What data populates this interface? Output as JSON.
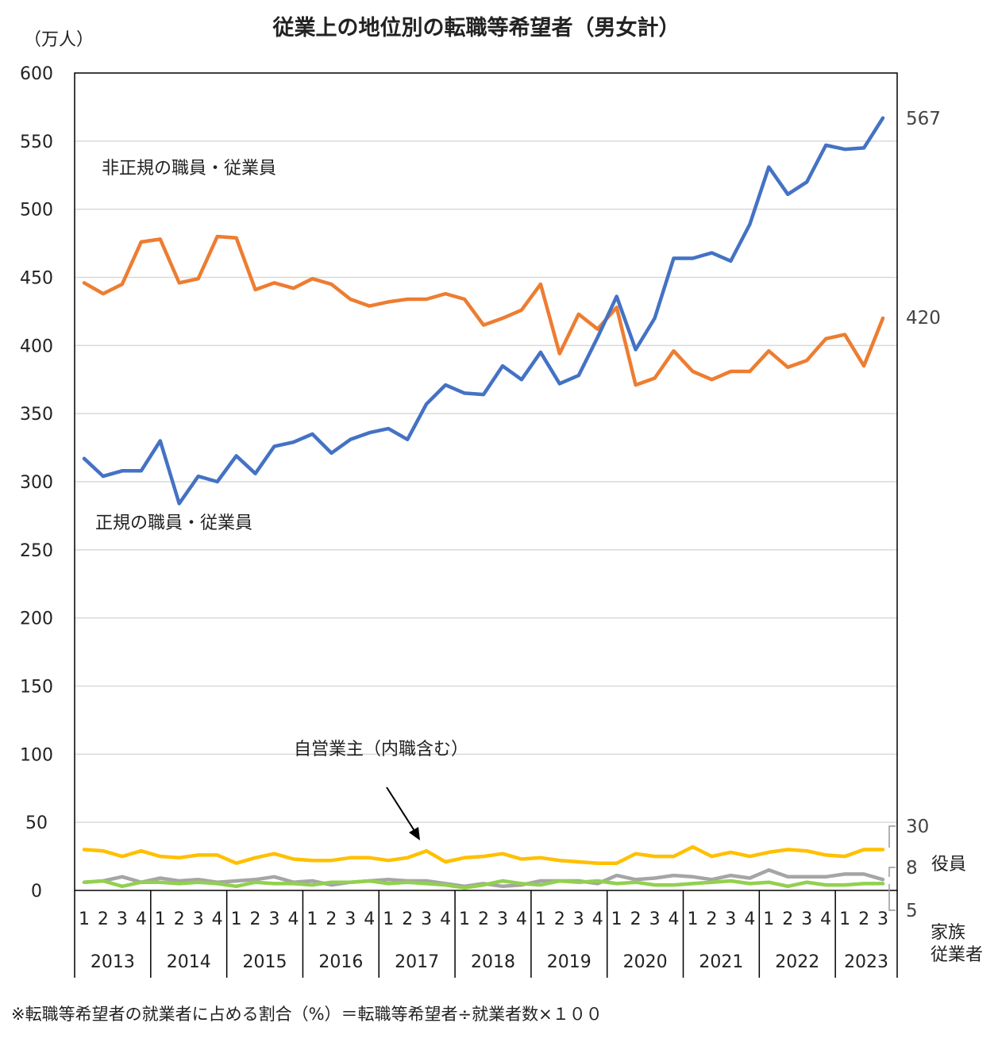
{
  "chart_data": {
    "type": "line",
    "title": "従業上の地位別の転職等希望者（男女計）",
    "unit_label": "（万人）",
    "footnote": "※転職等希望者の就業者に占める割合（%）＝転職等希望者÷就業者数×１００",
    "ylim": [
      0,
      600
    ],
    "yticks": [
      "0",
      "50",
      "100",
      "150",
      "200",
      "250",
      "300",
      "350",
      "400",
      "450",
      "500",
      "550",
      "600"
    ],
    "grid": true,
    "years": [
      "2013",
      "2014",
      "2015",
      "2016",
      "2017",
      "2018",
      "2019",
      "2020",
      "2021",
      "2022",
      "2023"
    ],
    "quarters": [
      "1",
      "2",
      "3",
      "4",
      "1",
      "2",
      "3",
      "4",
      "1",
      "2",
      "3",
      "4",
      "1",
      "2",
      "3",
      "4",
      "1",
      "2",
      "3",
      "4",
      "1",
      "2",
      "3",
      "4",
      "1",
      "2",
      "3",
      "4",
      "1",
      "2",
      "3",
      "4",
      "1",
      "2",
      "3",
      "4",
      "1",
      "2",
      "3",
      "4",
      "1",
      "2",
      "3"
    ],
    "series": [
      {
        "name": "正規の職員・従業員",
        "color": "#4472C4",
        "values": [
          317,
          304,
          308,
          308,
          330,
          284,
          304,
          300,
          319,
          306,
          326,
          329,
          335,
          321,
          331,
          336,
          339,
          331,
          357,
          371,
          365,
          364,
          385,
          375,
          395,
          372,
          378,
          406,
          436,
          397,
          420,
          464,
          464,
          468,
          462,
          489,
          531,
          511,
          520,
          547,
          544,
          545,
          567
        ]
      },
      {
        "name": "非正規の職員・従業員",
        "color": "#ED7D31",
        "values": [
          446,
          438,
          445,
          476,
          478,
          446,
          449,
          480,
          479,
          441,
          446,
          442,
          449,
          445,
          434,
          429,
          432,
          434,
          434,
          438,
          434,
          415,
          420,
          426,
          445,
          394,
          423,
          412,
          428,
          371,
          376,
          396,
          381,
          375,
          381,
          381,
          396,
          384,
          389,
          405,
          408,
          385,
          420
        ]
      },
      {
        "name": "自営業主（内職含む）",
        "color": "#FFC000",
        "values": [
          30,
          29,
          25,
          29,
          25,
          24,
          26,
          26,
          20,
          24,
          27,
          23,
          22,
          22,
          24,
          24,
          22,
          24,
          29,
          21,
          24,
          25,
          27,
          23,
          24,
          22,
          21,
          20,
          20,
          27,
          25,
          25,
          32,
          25,
          28,
          25,
          28,
          30,
          29,
          26,
          25,
          30,
          30
        ]
      },
      {
        "name": "役員",
        "color": "#A5A5A5",
        "values": [
          6,
          7,
          10,
          6,
          9,
          7,
          8,
          6,
          7,
          8,
          10,
          6,
          7,
          4,
          6,
          7,
          8,
          7,
          7,
          5,
          3,
          5,
          3,
          4,
          7,
          7,
          7,
          5,
          11,
          8,
          9,
          11,
          10,
          8,
          11,
          9,
          15,
          10,
          10,
          10,
          12,
          12,
          8
        ]
      },
      {
        "name": "家族従業者",
        "color": "#92D050",
        "values": [
          6,
          7,
          3,
          6,
          6,
          5,
          6,
          5,
          3,
          6,
          5,
          5,
          4,
          6,
          6,
          7,
          5,
          6,
          5,
          4,
          2,
          4,
          7,
          5,
          4,
          7,
          6,
          7,
          5,
          6,
          4,
          4,
          5,
          6,
          7,
          5,
          6,
          3,
          6,
          4,
          4,
          5,
          5
        ]
      }
    ],
    "series_labels": {
      "regular": "正規の職員・従業員",
      "nonregular": "非正規の職員・従業員",
      "selfemployed": "自営業主（内職含む）",
      "executive": "役員",
      "family_line1": "家族",
      "family_line2": "従業者"
    },
    "end_labels": {
      "regular": "567",
      "nonregular": "420",
      "selfemployed": "30",
      "executive": "8",
      "family": "5"
    }
  }
}
